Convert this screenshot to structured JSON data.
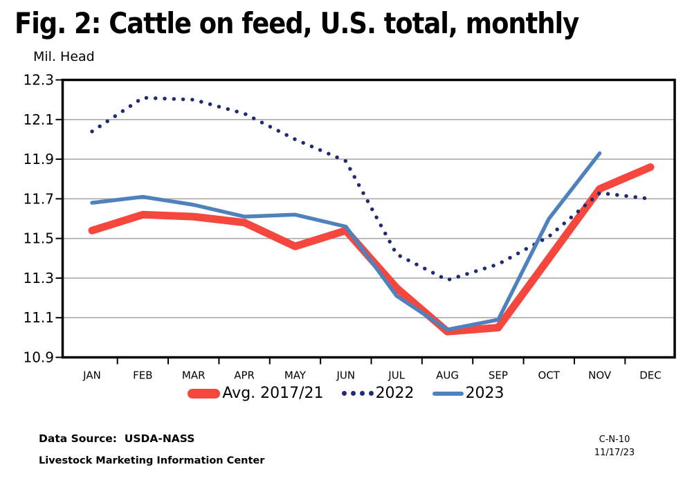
{
  "title": "Fig. 2: Cattle on feed, U.S. total, monthly",
  "y_axis_label": "Mil. Head",
  "footer": {
    "data_source": "Data Source:  USDA-NASS",
    "org": "Livestock Marketing Information Center",
    "code": "C-N-10",
    "date": "11/17/23"
  },
  "colors": {
    "frame": "#000000",
    "grid": "#a9a9a9",
    "text": "#000000"
  },
  "chart_data": {
    "type": "line",
    "title": "Fig. 2: Cattle on feed, U.S. total, monthly",
    "xlabel": "",
    "ylabel": "Mil. Head",
    "categories": [
      "JAN",
      "FEB",
      "MAR",
      "APR",
      "MAY",
      "JUN",
      "JUL",
      "AUG",
      "SEP",
      "OCT",
      "NOV",
      "DEC"
    ],
    "ylim": [
      10.9,
      12.3
    ],
    "yticks": [
      12.3,
      12.1,
      11.9,
      11.7,
      11.5,
      11.3,
      11.1,
      10.9
    ],
    "grid": true,
    "legend_position": "bottom",
    "series": [
      {
        "name": "Avg. 2017/21",
        "style": "thick-solid",
        "color": "#f5473e",
        "values": [
          11.54,
          11.62,
          11.61,
          11.58,
          11.46,
          11.54,
          11.25,
          11.03,
          11.05,
          11.4,
          11.75,
          11.86
        ]
      },
      {
        "name": "2022",
        "style": "dotted",
        "color": "#202a72",
        "values": [
          12.04,
          12.21,
          12.2,
          12.13,
          12.0,
          11.89,
          11.42,
          11.29,
          11.37,
          11.51,
          11.73,
          11.7
        ]
      },
      {
        "name": "2023",
        "style": "solid",
        "color": "#4f81bd",
        "values": [
          11.68,
          11.71,
          11.67,
          11.61,
          11.62,
          11.56,
          11.21,
          11.04,
          11.09,
          11.6,
          11.93,
          null
        ]
      }
    ]
  }
}
